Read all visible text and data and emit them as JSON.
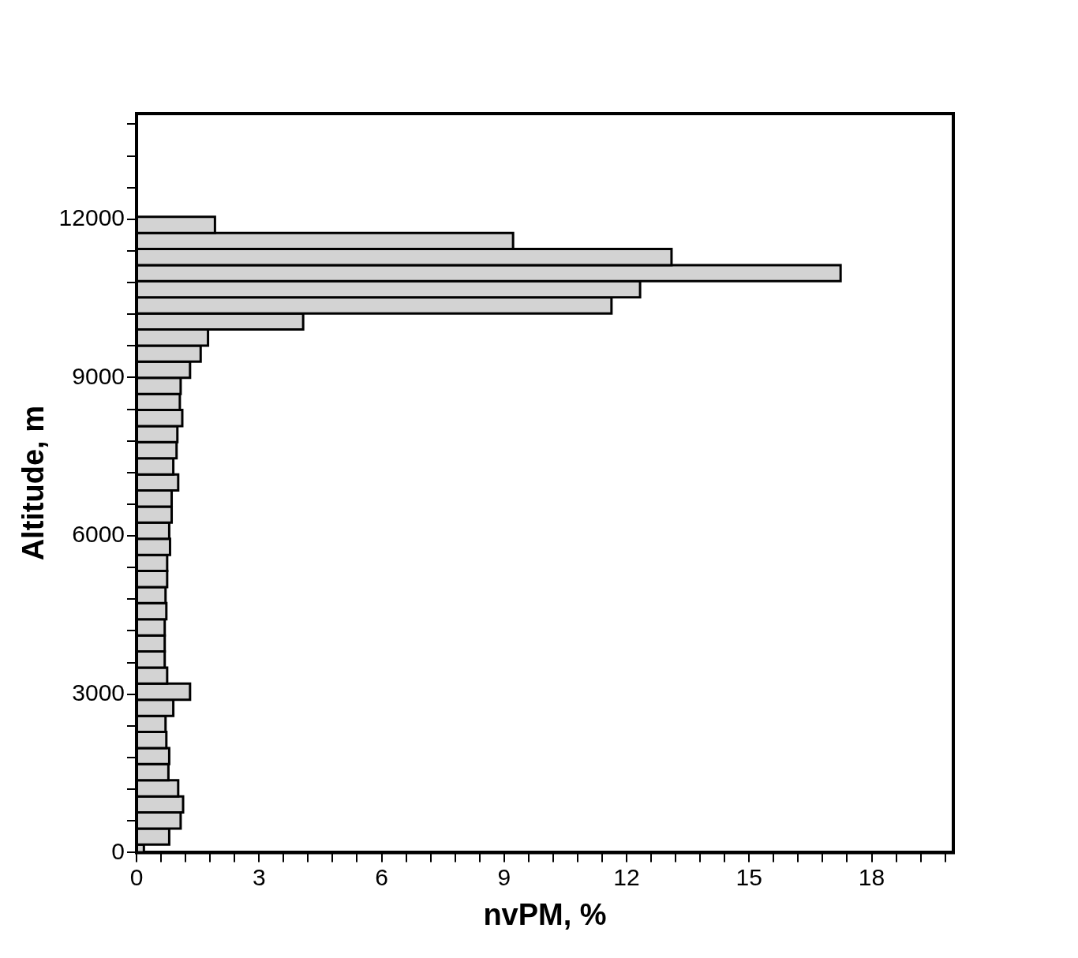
{
  "chart_data": {
    "type": "histogram",
    "orientation": "horizontal",
    "xlabel": "nvPM, %",
    "ylabel": "Altitude, m",
    "bins": [
      0,
      150,
      455,
      760,
      1065,
      1370,
      1675,
      1980,
      2285,
      2590,
      2895,
      3200,
      3505,
      3810,
      4115,
      4420,
      4725,
      5030,
      5335,
      5640,
      5945,
      6250,
      6555,
      6860,
      7165,
      7470,
      7775,
      8080,
      8385,
      8690,
      8995,
      9300,
      9605,
      9910,
      10215,
      10520,
      10825,
      11130,
      11435,
      11740,
      12045
    ],
    "values": [
      0.18,
      0.8,
      1.08,
      1.14,
      1.02,
      0.78,
      0.8,
      0.73,
      0.71,
      0.9,
      1.31,
      0.75,
      0.69,
      0.69,
      0.69,
      0.73,
      0.71,
      0.75,
      0.75,
      0.82,
      0.8,
      0.86,
      0.86,
      1.02,
      0.9,
      0.98,
      1.0,
      1.12,
      1.06,
      1.08,
      1.31,
      1.57,
      1.75,
      4.08,
      11.63,
      12.33,
      17.24,
      13.1,
      9.22,
      1.92
    ],
    "color": "#d3d3d3",
    "xlim": [
      0,
      20
    ],
    "xticks": [
      0,
      {
        "value": 0.6,
        "label": null
      },
      {
        "value": 1.2,
        "label": null
      },
      {
        "value": 1.8,
        "label": null
      },
      {
        "value": 2.4,
        "label": null
      },
      3,
      {
        "value": 3.6,
        "label": null
      },
      {
        "value": 4.2,
        "label": null
      },
      {
        "value": 4.8,
        "label": null
      },
      {
        "value": 5.4,
        "label": null
      },
      6,
      {
        "value": 6.6,
        "label": null
      },
      {
        "value": 7.2,
        "label": null
      },
      {
        "value": 7.8,
        "label": null
      },
      {
        "value": 8.4,
        "label": null
      },
      9,
      {
        "value": 9.6,
        "label": null
      },
      {
        "value": 10.2,
        "label": null
      },
      {
        "value": 10.8,
        "label": null
      },
      {
        "value": 11.4,
        "label": null
      },
      12,
      {
        "value": 12.6,
        "label": null
      },
      {
        "value": 13.2,
        "label": null
      },
      {
        "value": 13.8,
        "label": null
      },
      {
        "value": 14.4,
        "label": null
      },
      15,
      {
        "value": 15.6,
        "label": null
      },
      {
        "value": 16.2,
        "label": null
      },
      {
        "value": 16.8,
        "label": null
      },
      {
        "value": 17.4,
        "label": null
      },
      18,
      {
        "value": 18.6,
        "label": null
      },
      {
        "value": 19.2,
        "label": null
      },
      {
        "value": 19.8,
        "label": null
      }
    ],
    "ylim": [
      0,
      14000
    ],
    "yticks": [
      0,
      {
        "value": 600,
        "label": null
      },
      {
        "value": 1200,
        "label": null
      },
      {
        "value": 1800,
        "label": null
      },
      {
        "value": 2400,
        "label": null
      },
      3000,
      {
        "value": 3600,
        "label": null
      },
      {
        "value": 4200,
        "label": null
      },
      {
        "value": 4800,
        "label": null
      },
      {
        "value": 5400,
        "label": null
      },
      6000,
      {
        "value": 6600,
        "label": null
      },
      {
        "value": 7200,
        "label": null
      },
      {
        "value": 7800,
        "label": null
      },
      {
        "value": 8400,
        "label": null
      },
      9000,
      {
        "value": 9600,
        "label": null
      },
      {
        "value": 10200,
        "label": null
      },
      {
        "value": 10800,
        "label": null
      },
      {
        "value": 11400,
        "label": null
      },
      12000,
      {
        "value": 12600,
        "label": null
      },
      {
        "value": 13200,
        "label": null
      },
      {
        "value": 13800,
        "label": null
      }
    ],
    "grid": false,
    "legend": false
  }
}
